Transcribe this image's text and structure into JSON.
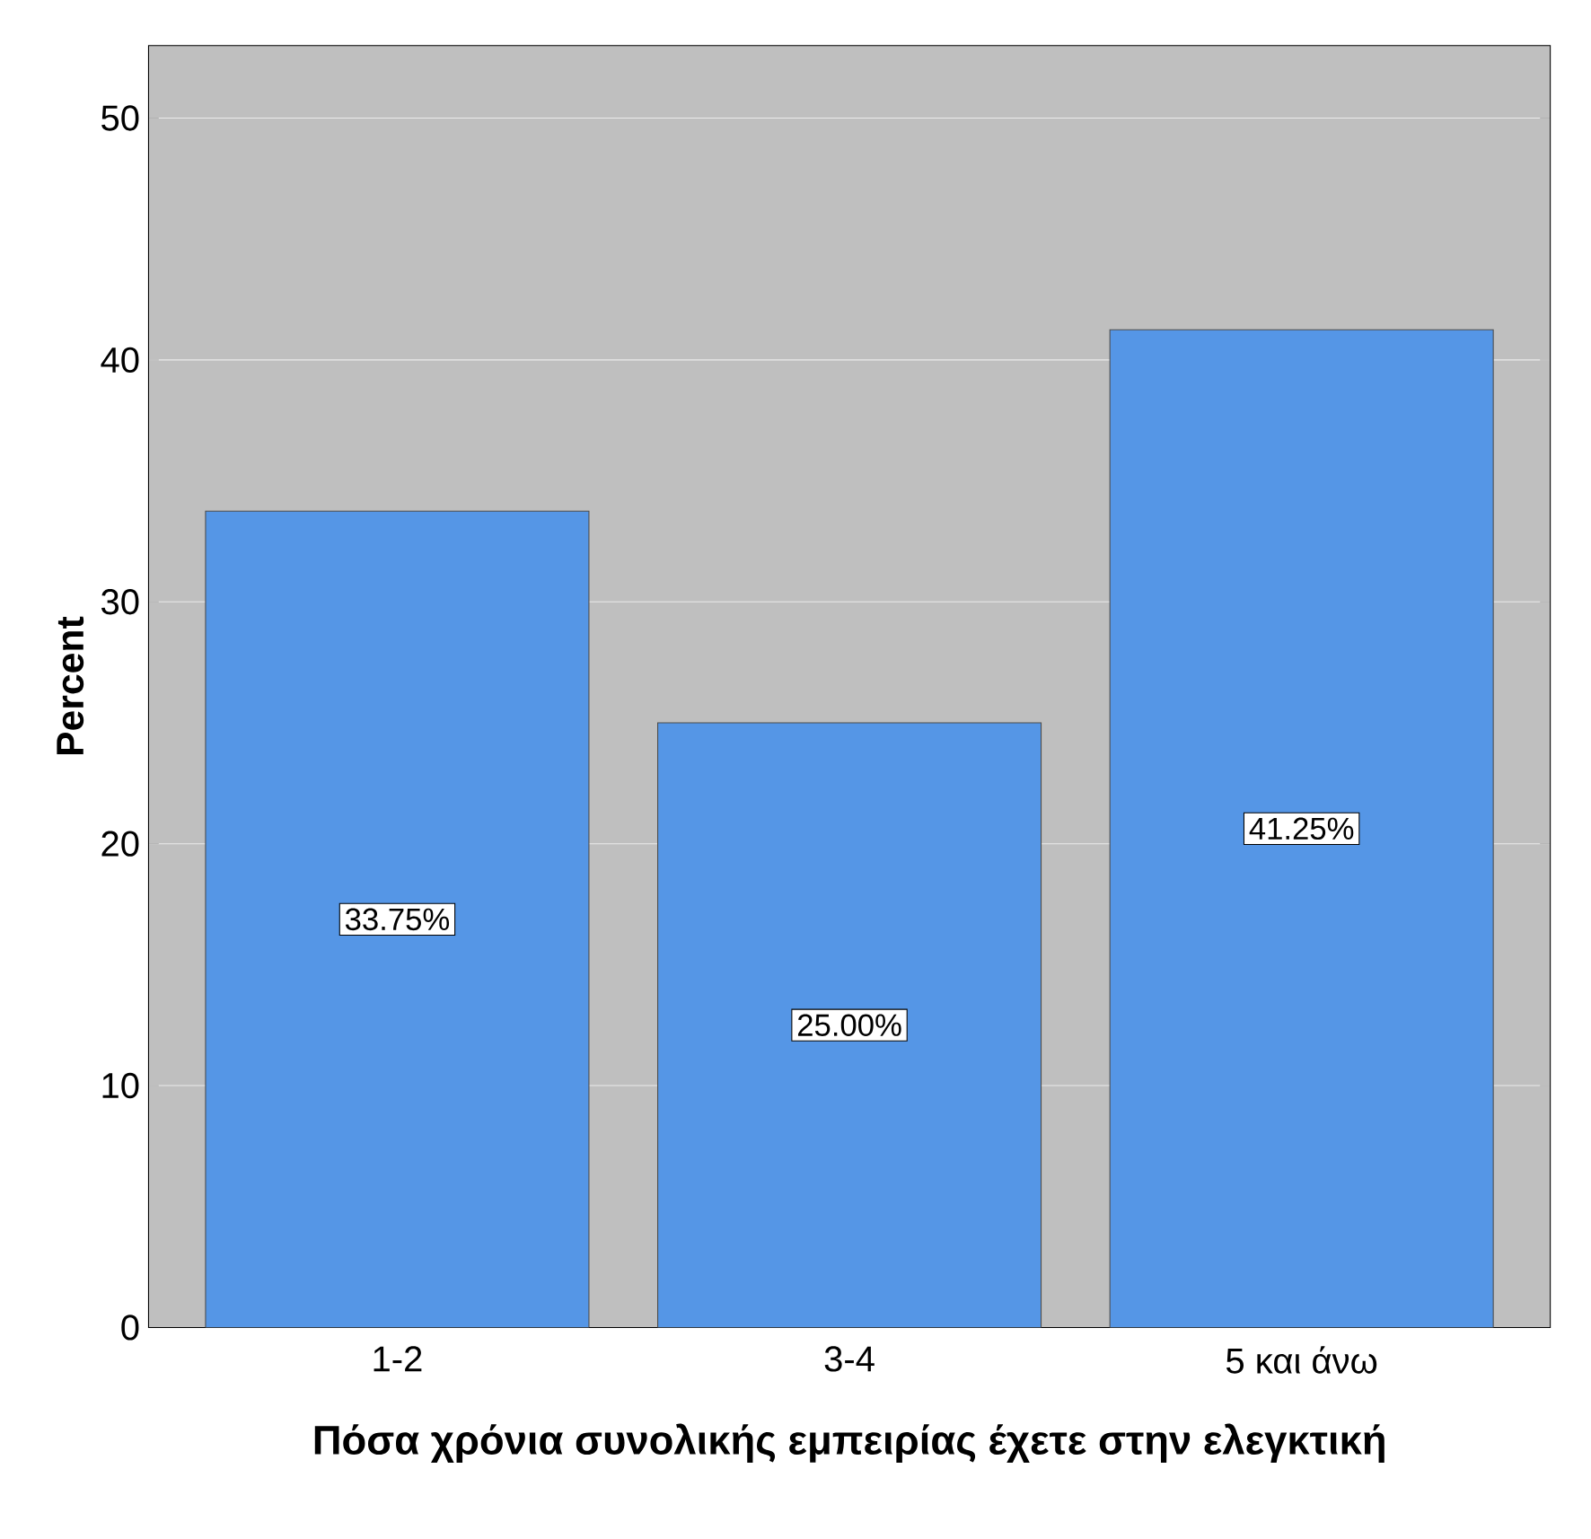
{
  "chart_data": {
    "type": "bar",
    "xlabel": "Πόσα χρόνια συνολικής εμπειρίας έχετε στην ελεγκτική",
    "ylabel": "Percent",
    "categories": [
      "1-2",
      "3-4",
      "5 και άνω"
    ],
    "values": [
      33.75,
      25.0,
      41.25
    ],
    "value_labels": [
      "33.75%",
      "25.00%",
      "41.25%"
    ],
    "color": "#5596e6",
    "ylim": [
      0,
      53
    ],
    "yticks": [
      0,
      10,
      20,
      30,
      40,
      50
    ],
    "grid": "y"
  }
}
